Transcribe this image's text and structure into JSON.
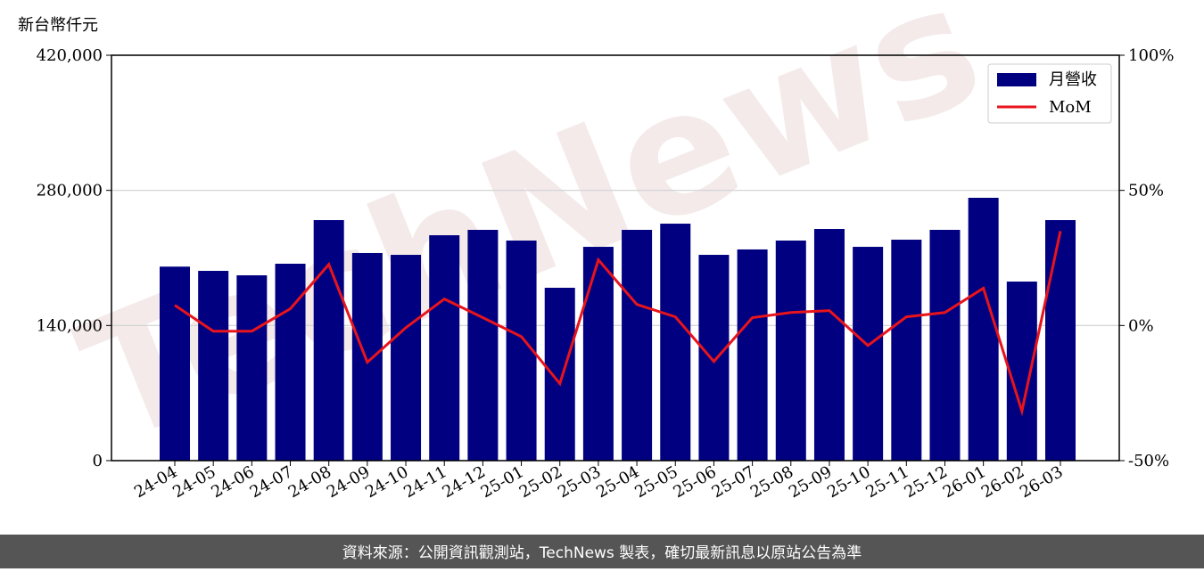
{
  "chart_data": {
    "type": "bar-line",
    "y_label": "新台幣仟元",
    "watermark": "TechNews",
    "footer": "資料來源：公開資訊觀測站，TechNews 製表，確切最新訊息以原站公告為準",
    "categories": [
      "24-04",
      "24-05",
      "24-06",
      "24-07",
      "24-08",
      "24-09",
      "24-10",
      "24-11",
      "24-12",
      "25-01",
      "25-02",
      "25-03",
      "25-04",
      "25-05",
      "25-06",
      "25-07",
      "25-08",
      "25-09",
      "25-10",
      "25-11",
      "25-12",
      "26-01",
      "26-02",
      "26-03"
    ],
    "series": [
      {
        "name": "月營收",
        "type": "bar",
        "color": "#000080",
        "values": [
          201000,
          196600,
          192000,
          204000,
          249200,
          215100,
          213200,
          233500,
          239100,
          228000,
          179100,
          221500,
          239100,
          245500,
          213200,
          218800,
          228000,
          240000,
          221500,
          228900,
          239100,
          272300,
          185500,
          249200
        ]
      },
      {
        "name": "MoM",
        "type": "line",
        "axis": "y2",
        "color": "#e8141c",
        "values": [
          7.5,
          -2.1,
          -2.1,
          6.2,
          22.6,
          -13.6,
          -0.8,
          9.8,
          2.9,
          -4.1,
          -21.5,
          24.3,
          7.8,
          3.2,
          -13.3,
          2.9,
          4.8,
          5.5,
          -7.4,
          3.2,
          4.8,
          13.8,
          -31.7,
          34.9
        ]
      }
    ],
    "ylim": [
      0,
      420000
    ],
    "yticks": [
      0,
      {
        "value": 140000,
        "label": "140,000"
      },
      {
        "value": 280000,
        "label": "280,000"
      },
      {
        "value": 420000,
        "label": "420,000"
      }
    ],
    "y2lim": [
      -50,
      100
    ],
    "y2ticks": [
      {
        "value": -50,
        "label": "-50%"
      },
      {
        "value": 0,
        "label": "0%"
      },
      {
        "value": 50,
        "label": "50%"
      },
      {
        "value": 100,
        "label": "100%"
      }
    ],
    "grid": true,
    "legend": "upper right"
  }
}
